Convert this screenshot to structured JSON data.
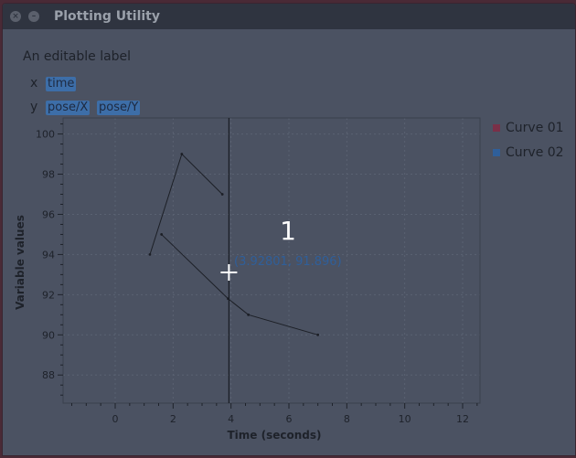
{
  "window": {
    "title": "Plotting Utility",
    "close_glyph": "×",
    "minimize_glyph": "–"
  },
  "editable_label": "An editable label",
  "axis_selectors": {
    "x": {
      "label": "x",
      "tags": [
        "time"
      ]
    },
    "y": {
      "label": "y",
      "tags": [
        "pose/X",
        "pose/Y"
      ]
    }
  },
  "colors": {
    "tag_bg": "#3d6ea8",
    "curve01": "#7a3048",
    "curve02": "#2f5f9a"
  },
  "plot": {
    "marker_number": "1",
    "cursor_readout": "(3.92801, 91.896)"
  },
  "chart_data": {
    "type": "line",
    "xlabel": "Time (seconds)",
    "ylabel": "Variable values",
    "xlim": [
      -1.8,
      12.6
    ],
    "ylim": [
      86.6,
      100.8
    ],
    "grid": true,
    "xticks": [
      0,
      2,
      4,
      6,
      8,
      10,
      12
    ],
    "yticks": [
      88,
      90,
      92,
      94,
      96,
      98,
      100
    ],
    "vertical_marker_x": 3.92801,
    "legend_position": "top-right",
    "series": [
      {
        "name": "Curve 01",
        "x": [
          1.2,
          2.3,
          3.7
        ],
        "y": [
          94,
          99,
          97
        ]
      },
      {
        "name": "Curve 02",
        "x": [
          1.6,
          3.9,
          4.6,
          7.0
        ],
        "y": [
          95,
          91.8,
          91,
          90
        ]
      }
    ]
  }
}
